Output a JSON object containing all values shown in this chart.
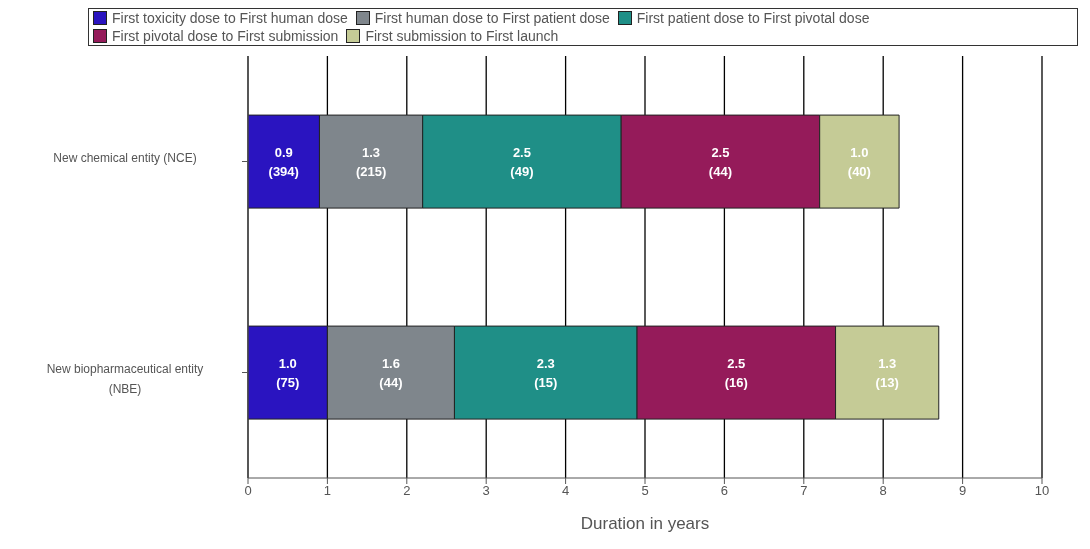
{
  "chart_data": {
    "type": "bar",
    "orientation": "horizontal",
    "stacked": true,
    "xlabel": "Duration in years",
    "categories": [
      "New chemical entity (NCE)",
      "New biopharmaceutical entity (NBE)"
    ],
    "series": [
      {
        "name": "First toxicity dose to First human dose",
        "color": "#2a14c0",
        "values": [
          0.9,
          1.0
        ],
        "value_labels": [
          "0.9\n(394)",
          "1.0\n(75)"
        ]
      },
      {
        "name": "First human dose to First patient dose",
        "color": "#7f868c",
        "values": [
          1.3,
          1.6
        ],
        "value_labels": [
          "1.3\n(215)",
          "1.6\n(44)"
        ]
      },
      {
        "name": "First patient dose to First pivotal dose",
        "color": "#1f8f87",
        "values": [
          2.5,
          2.3
        ],
        "value_labels": [
          "2.5\n(49)",
          "2.3\n(15)"
        ]
      },
      {
        "name": "First pivotal dose to First submission",
        "color": "#951b5a",
        "values": [
          2.5,
          2.5
        ],
        "value_labels": [
          "2.5\n(44)",
          "2.5\n(16)"
        ]
      },
      {
        "name": "First submission to First launch",
        "color": "#c5cb96",
        "values": [
          1.0,
          1.3
        ],
        "value_labels": [
          "1.0\n(40)",
          "1.3\n(13)"
        ]
      }
    ],
    "xlim": [
      0,
      10
    ],
    "xticks": [
      0,
      1,
      2,
      3,
      4,
      5,
      6,
      7,
      8,
      9,
      10
    ],
    "grid": "x",
    "legend": "top"
  }
}
